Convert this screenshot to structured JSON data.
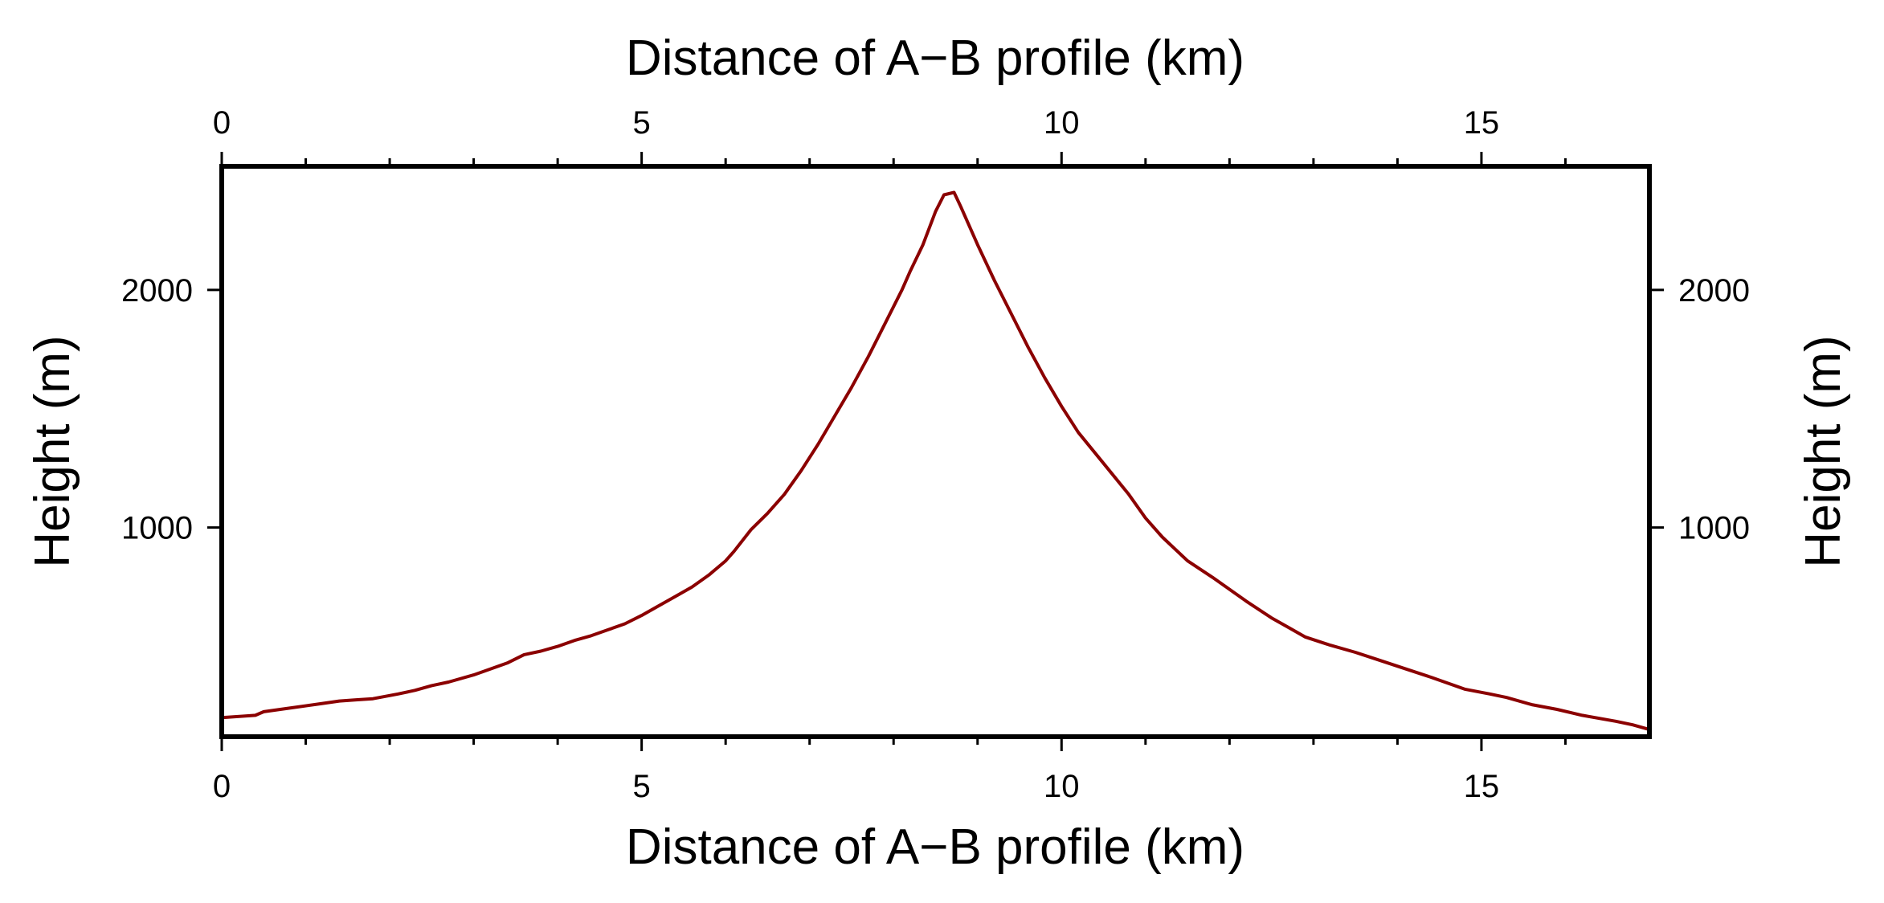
{
  "chart_data": {
    "type": "line",
    "title": "",
    "xlabel_top": "Distance of A−B profile (km)",
    "xlabel_bottom": "Distance of A−B profile (km)",
    "ylabel_left": "Height (m)",
    "ylabel_right": "Height (m)",
    "xlim": [
      0,
      17
    ],
    "ylim": [
      120,
      2520
    ],
    "x_ticks_major": [
      0,
      5,
      10,
      15
    ],
    "x_tick_labels": [
      "0",
      "5",
      "10",
      "15"
    ],
    "x_ticks_minor": [
      1,
      2,
      3,
      4,
      6,
      7,
      8,
      9,
      11,
      12,
      13,
      14,
      16
    ],
    "y_ticks_major": [
      1000,
      2000
    ],
    "y_tick_labels": [
      "1000",
      "2000"
    ],
    "grid": false,
    "legend": "none",
    "series": [
      {
        "color": "#8b0000",
        "x": [
          0,
          0.4,
          0.5,
          0.8,
          1.2,
          1.4,
          1.6,
          1.8,
          2.1,
          2.3,
          2.5,
          2.7,
          3.0,
          3.4,
          3.6,
          3.8,
          4.0,
          4.2,
          4.4,
          4.6,
          4.8,
          5.0,
          5.2,
          5.4,
          5.6,
          5.8,
          6.0,
          6.1,
          6.3,
          6.5,
          6.7,
          6.9,
          7.1,
          7.3,
          7.5,
          7.7,
          7.9,
          8.1,
          8.2,
          8.35,
          8.5,
          8.6,
          8.72,
          8.8,
          9.0,
          9.2,
          9.4,
          9.6,
          9.8,
          10.0,
          10.2,
          10.5,
          10.8,
          11.0,
          11.2,
          11.5,
          11.8,
          12.0,
          12.2,
          12.5,
          12.7,
          12.9,
          13.2,
          13.5,
          13.8,
          14.1,
          14.4,
          14.8,
          15.1,
          15.3,
          15.6,
          15.9,
          16.2,
          16.6,
          16.8,
          17.0
        ],
        "y": [
          200,
          210,
          225,
          240,
          260,
          270,
          275,
          280,
          300,
          315,
          335,
          350,
          380,
          430,
          465,
          480,
          500,
          525,
          545,
          570,
          595,
          630,
          670,
          710,
          750,
          800,
          860,
          900,
          990,
          1060,
          1140,
          1240,
          1350,
          1470,
          1590,
          1720,
          1860,
          2000,
          2080,
          2190,
          2330,
          2400,
          2410,
          2350,
          2190,
          2040,
          1900,
          1760,
          1630,
          1510,
          1400,
          1270,
          1140,
          1040,
          960,
          860,
          790,
          740,
          690,
          620,
          580,
          540,
          505,
          475,
          440,
          405,
          370,
          320,
          300,
          285,
          255,
          235,
          210,
          185,
          170,
          150
        ]
      }
    ]
  }
}
